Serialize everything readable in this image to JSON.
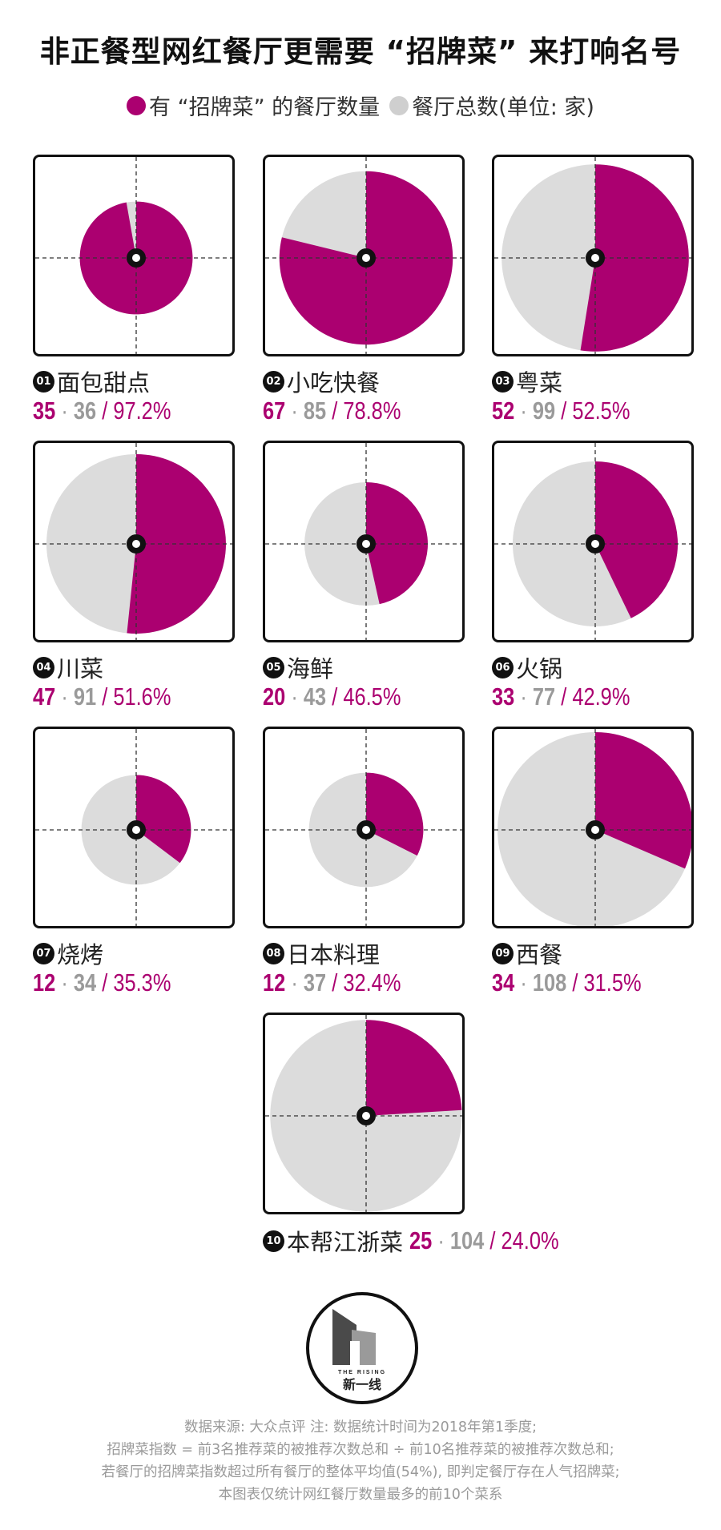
{
  "title": "非正餐型网红餐厅更需要 “招牌菜” 来打响名号",
  "legend": {
    "signature_label": "有 “招牌菜” 的餐厅数量",
    "total_label": "餐厅总数",
    "unit_label": "(单位: 家)"
  },
  "colors": {
    "signature": "#ab0070",
    "total": "#dcdcdc",
    "dark": "#111111",
    "gray_text": "#9a9a9a"
  },
  "chart_data": {
    "type": "pie",
    "title": "非正餐型网红餐厅更需要 “招牌菜” 来打响名号",
    "series": [
      {
        "name": "有 “招牌菜” 的餐厅数量"
      },
      {
        "name": "餐厅总数"
      }
    ],
    "unit": "家",
    "items": [
      {
        "rank": "01",
        "name": "面包甜点",
        "signature": 35,
        "total": 36,
        "percent": "97.2%"
      },
      {
        "rank": "02",
        "name": "小吃快餐",
        "signature": 67,
        "total": 85,
        "percent": "78.8%"
      },
      {
        "rank": "03",
        "name": "粤菜",
        "signature": 52,
        "total": 99,
        "percent": "52.5%"
      },
      {
        "rank": "04",
        "name": "川菜",
        "signature": 47,
        "total": 91,
        "percent": "51.6%"
      },
      {
        "rank": "05",
        "name": "海鲜",
        "signature": 20,
        "total": 43,
        "percent": "46.5%"
      },
      {
        "rank": "06",
        "name": "火锅",
        "signature": 33,
        "total": 77,
        "percent": "42.9%"
      },
      {
        "rank": "07",
        "name": "烧烤",
        "signature": 12,
        "total": 34,
        "percent": "35.3%"
      },
      {
        "rank": "08",
        "name": "日本料理",
        "signature": 12,
        "total": 37,
        "percent": "32.4%"
      },
      {
        "rank": "09",
        "name": "西餐",
        "signature": 34,
        "total": 108,
        "percent": "31.5%"
      },
      {
        "rank": "10",
        "name": "本帮江浙菜",
        "signature": 25,
        "total": 104,
        "percent": "24.0%"
      }
    ]
  },
  "logo": {
    "tagline": "THE RISING",
    "name": "新一线"
  },
  "footer": {
    "line1": "数据来源: 大众点评  注: 数据统计时间为2018年第1季度;",
    "line2": "招牌菜指数 = 前3名推荐菜的被推荐次数总和  ÷  前10名推荐菜的被推荐次数总和;",
    "line3": "若餐厅的招牌菜指数超过所有餐厅的整体平均值(54%), 即判定餐厅存在人气招牌菜;",
    "line4": "本图表仅统计网红餐厅数量最多的前10个菜系"
  }
}
